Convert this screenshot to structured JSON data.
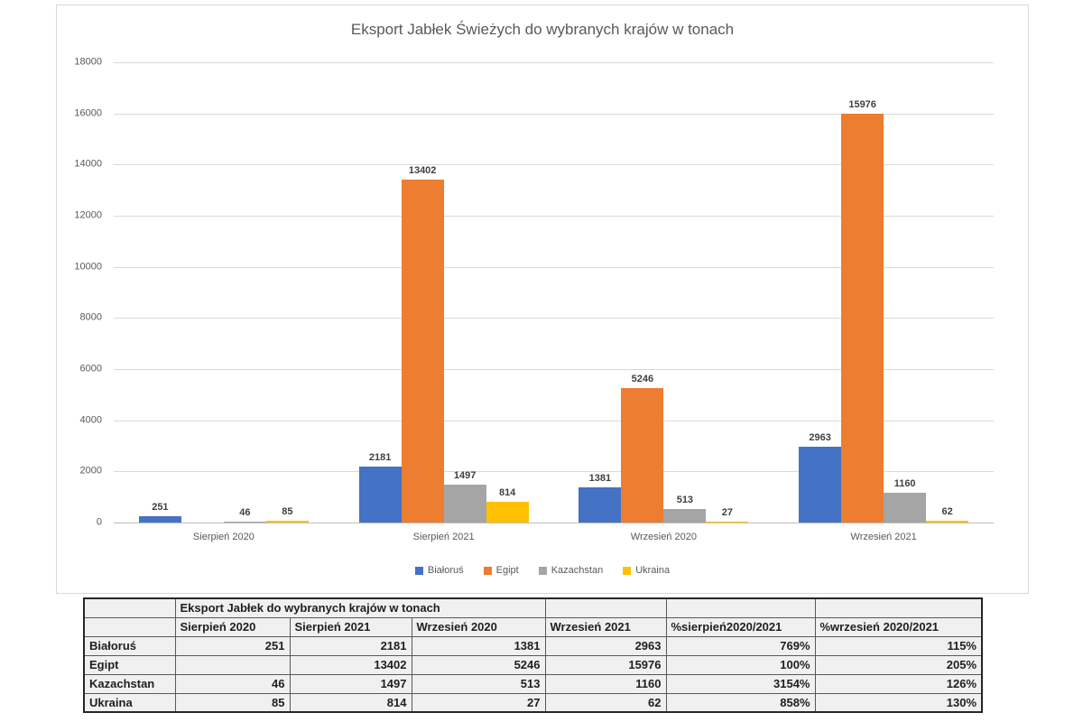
{
  "chart_data": {
    "type": "bar",
    "title": "Eksport Jabłek Świeżych do wybranych krajów w tonach",
    "categories": [
      "Sierpień 2020",
      "Sierpień 2021",
      "Wrzesień 2020",
      "Wrzesień 2021"
    ],
    "series": [
      {
        "name": "Białoruś",
        "color": "#4472C4",
        "values": [
          251,
          2181,
          1381,
          2963
        ]
      },
      {
        "name": "Egipt",
        "color": "#ED7D31",
        "values": [
          null,
          13402,
          5246,
          15976
        ]
      },
      {
        "name": "Kazachstan",
        "color": "#A5A5A5",
        "values": [
          46,
          1497,
          513,
          1160
        ]
      },
      {
        "name": "Ukraina",
        "color": "#FFC000",
        "values": [
          85,
          814,
          27,
          62
        ]
      }
    ],
    "xlabel": "",
    "ylabel": "",
    "ylim": [
      0,
      18000
    ],
    "ytick_step": 2000,
    "grid": true,
    "data_labels": true,
    "legend_position": "bottom"
  },
  "table": {
    "merged_title": "Eksport Jabłek do wybranych krajów w tonach",
    "columns": [
      "Sierpień 2020",
      "Sierpień 2021",
      "Wrzesień 2020",
      "Wrzesień 2021",
      "%sierpień2020/2021",
      "%wrzesień 2020/2021"
    ],
    "rows": [
      {
        "label": "Białoruś",
        "values": [
          "251",
          "2181",
          "1381",
          "2963",
          "769%",
          "115%"
        ]
      },
      {
        "label": "Egipt",
        "values": [
          "",
          "13402",
          "5246",
          "15976",
          "100%",
          "205%"
        ]
      },
      {
        "label": "Kazachstan",
        "values": [
          "46",
          "1497",
          "513",
          "1160",
          "3154%",
          "126%"
        ]
      },
      {
        "label": "Ukraina",
        "values": [
          "85",
          "814",
          "27",
          "62",
          "858%",
          "130%"
        ]
      }
    ],
    "border_color": "#595959",
    "cell_background": "#f0f0f0"
  }
}
